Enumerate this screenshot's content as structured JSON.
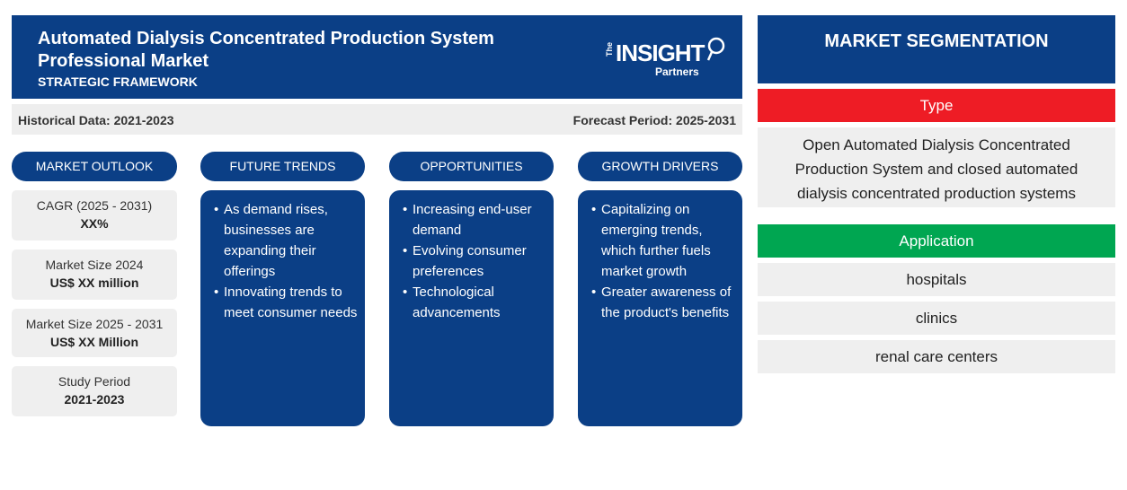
{
  "header": {
    "title": "Automated Dialysis Concentrated Production System Professional Market",
    "subtitle": "STRATEGIC FRAMEWORK",
    "logo": {
      "the": "The",
      "insight": "INSIGHT",
      "partners": "Partners"
    }
  },
  "periods": {
    "historical": "Historical Data: 2021-2023",
    "forecast": "Forecast Period: 2025-2031"
  },
  "outlook": {
    "heading": "MARKET OUTLOOK",
    "stats": [
      {
        "label": "CAGR (2025 - 2031)",
        "value": "XX%"
      },
      {
        "label": "Market Size 2024",
        "value": "US$ XX million"
      },
      {
        "label": "Market Size 2025 - 2031",
        "value": "US$ XX Million"
      },
      {
        "label": "Study Period",
        "value": "2021-2023"
      }
    ]
  },
  "trends": {
    "heading": "FUTURE TRENDS",
    "items": [
      "As demand rises, businesses are expanding their offerings",
      "Innovating trends to meet consumer needs"
    ]
  },
  "opportunities": {
    "heading": "OPPORTUNITIES",
    "items": [
      "Increasing end-user demand",
      "Evolving consumer preferences",
      "Technological advancements"
    ]
  },
  "drivers": {
    "heading": "GROWTH DRIVERS",
    "items": [
      "Capitalizing on emerging trends, which further fuels market growth",
      "Greater awareness of the product's benefits"
    ]
  },
  "segmentation": {
    "heading": "MARKET SEGMENTATION",
    "type_label": "Type",
    "type_items": [
      "Open Automated Dialysis Concentrated Production System and closed automated dialysis concentrated production systems"
    ],
    "application_label": "Application",
    "application_items": [
      "hospitals",
      "clinics",
      "renal care centers"
    ]
  },
  "colors": {
    "navy": "#0b3f86",
    "red": "#ee1c25",
    "green": "#00a651",
    "panel": "#efefef"
  }
}
